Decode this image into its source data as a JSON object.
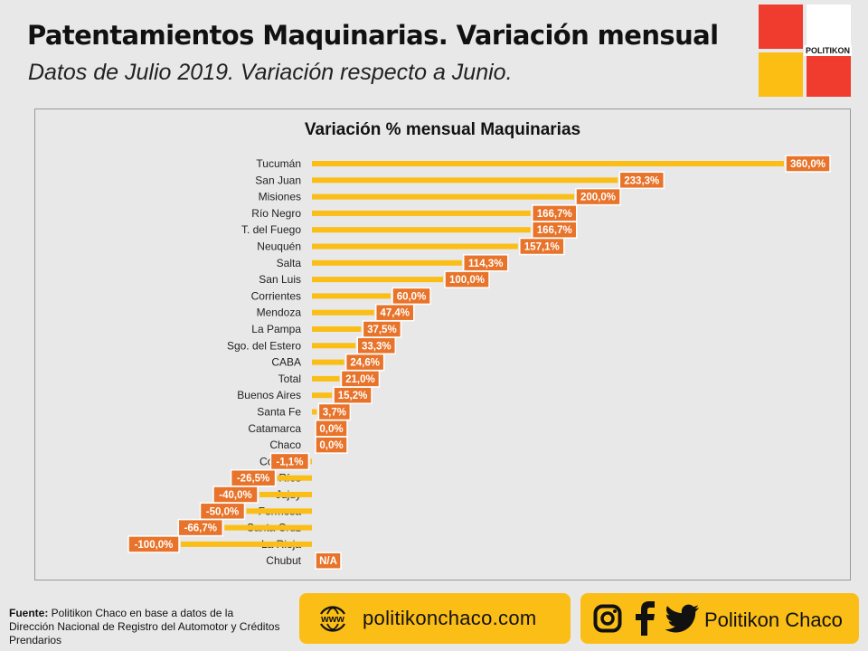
{
  "header": {
    "title": "Patentamientos Maquinarias. Variación mensual",
    "subtitle": "Datos de Julio 2019. Variación respecto a Junio."
  },
  "logo": {
    "text": "POLITIKON"
  },
  "chart_data": {
    "type": "bar",
    "orientation": "horizontal",
    "title": "Variación % mensual Maquinarias",
    "bar_color": "#fbbe16",
    "label_color": "#e8732a",
    "categories": [
      "Tucumán",
      "San Juan",
      "Misiones",
      "Río Negro",
      "T. del Fuego",
      "Neuquén",
      "Salta",
      "San Luis",
      "Corrientes",
      "Mendoza",
      "La Pampa",
      "Sgo. del Estero",
      "CABA",
      "Total",
      "Buenos Aires",
      "Santa Fe",
      "Catamarca",
      "Chaco",
      "Córdoba",
      "Entre Ríos",
      "Jujuy",
      "Formosa",
      "Santa Cruz",
      "La Rioja",
      "Chubut"
    ],
    "values": [
      360.0,
      233.3,
      200.0,
      166.7,
      166.7,
      157.1,
      114.3,
      100.0,
      60.0,
      47.4,
      37.5,
      33.3,
      24.6,
      21.0,
      15.2,
      3.7,
      0.0,
      0.0,
      -1.1,
      -26.5,
      -40.0,
      -50.0,
      -66.7,
      -100.0,
      null
    ],
    "labels": [
      "360,0%",
      "233,3%",
      "200,0%",
      "166,7%",
      "166,7%",
      "157,1%",
      "114,3%",
      "100,0%",
      "60,0%",
      "47,4%",
      "37,5%",
      "33,3%",
      "24,6%",
      "21,0%",
      "15,2%",
      "3,7%",
      "0,0%",
      "0,0%",
      "-1,1%",
      "-26,5%",
      "-40,0%",
      "-50,0%",
      "-66,7%",
      "-100,0%",
      "N/A"
    ],
    "xlim": [
      -100,
      360
    ]
  },
  "footer": {
    "source_label": "Fuente:",
    "source_text": " Politikon Chaco en base a datos de la Dirección Nacional de Registro del Automotor y Créditos Prendarios",
    "website": "politikonchaco.com",
    "www_icon_text": "www",
    "social_name": "Politikon Chaco"
  }
}
